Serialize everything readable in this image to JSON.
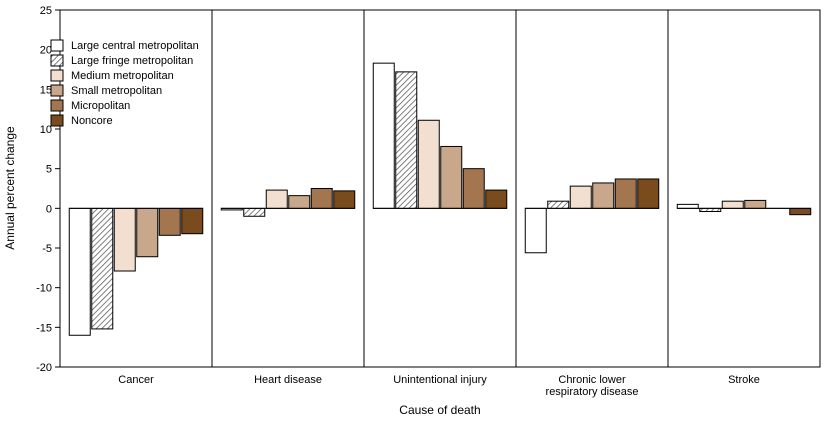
{
  "chart_data": {
    "type": "bar",
    "xlabel": "Cause of death",
    "ylabel": "Annual percent change",
    "ylim": [
      -20,
      25
    ],
    "yticks": [
      25,
      20,
      15,
      10,
      5,
      0,
      -5,
      -10,
      -15,
      -20
    ],
    "grid": false,
    "legend_position": "top-left",
    "categories": [
      [
        "Cancer"
      ],
      [
        "Heart disease"
      ],
      [
        "Unintentional injury"
      ],
      [
        "Chronic lower",
        "respiratory disease"
      ],
      [
        "Stroke"
      ]
    ],
    "series": [
      {
        "name": "Large central metropolitan",
        "fill": "#ffffff",
        "pattern": "none",
        "values": [
          -16.0,
          -0.2,
          18.3,
          -5.6,
          0.5
        ]
      },
      {
        "name": "Large fringe metropolitan",
        "fill": "#ffffff",
        "pattern": "hatch",
        "values": [
          -15.2,
          -1.0,
          17.2,
          0.9,
          -0.4
        ]
      },
      {
        "name": "Medium metropolitan",
        "fill": "#f2dfcf",
        "pattern": "none",
        "values": [
          -7.9,
          2.3,
          11.1,
          2.8,
          0.9
        ]
      },
      {
        "name": "Small metropolitan",
        "fill": "#c8a78a",
        "pattern": "none",
        "values": [
          -6.1,
          1.6,
          7.8,
          3.2,
          1.0
        ]
      },
      {
        "name": "Micropolitan",
        "fill": "#a37650",
        "pattern": "none",
        "values": [
          -3.4,
          2.5,
          5.0,
          3.7,
          0.0
        ]
      },
      {
        "name": "Noncore",
        "fill": "#7a4b1c",
        "pattern": "none",
        "values": [
          -3.2,
          2.2,
          2.3,
          3.7,
          -0.8
        ]
      }
    ]
  }
}
